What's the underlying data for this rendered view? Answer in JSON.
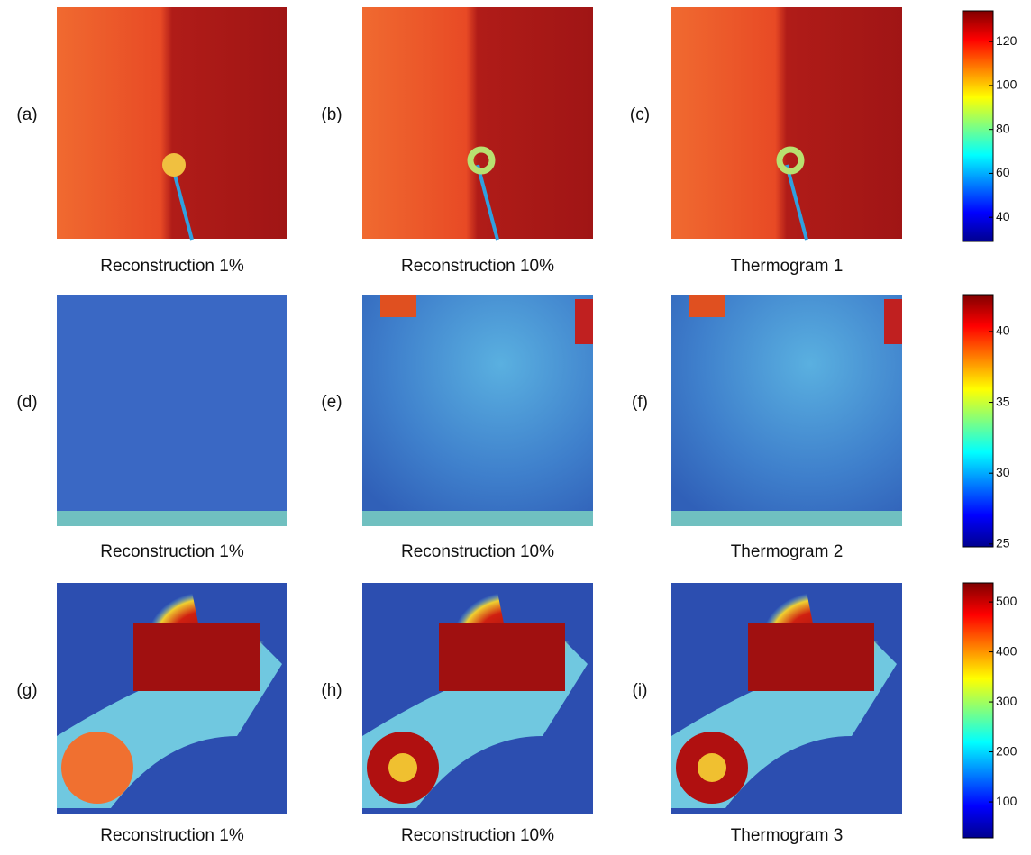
{
  "panels": [
    {
      "label": "(a)",
      "caption": "Reconstruction 1%"
    },
    {
      "label": "(b)",
      "caption": "Reconstruction 10%"
    },
    {
      "label": "(c)",
      "caption": "Thermogram 1"
    },
    {
      "label": "(d)",
      "caption": "Reconstruction 1%"
    },
    {
      "label": "(e)",
      "caption": "Reconstruction 10%"
    },
    {
      "label": "(f)",
      "caption": "Thermogram 2"
    },
    {
      "label": "(g)",
      "caption": "Reconstruction 1%"
    },
    {
      "label": "(h)",
      "caption": "Reconstruction 10%"
    },
    {
      "label": "(i)",
      "caption": "Thermogram 3"
    }
  ],
  "colorbars": [
    {
      "range": [
        29,
        134
      ],
      "ticks": [
        40,
        60,
        80,
        100,
        120
      ]
    },
    {
      "range": [
        24.8,
        42.6
      ],
      "ticks": [
        25,
        30,
        35,
        40
      ]
    },
    {
      "range": [
        28,
        538
      ],
      "ticks": [
        100,
        200,
        300,
        400,
        500
      ]
    }
  ]
}
